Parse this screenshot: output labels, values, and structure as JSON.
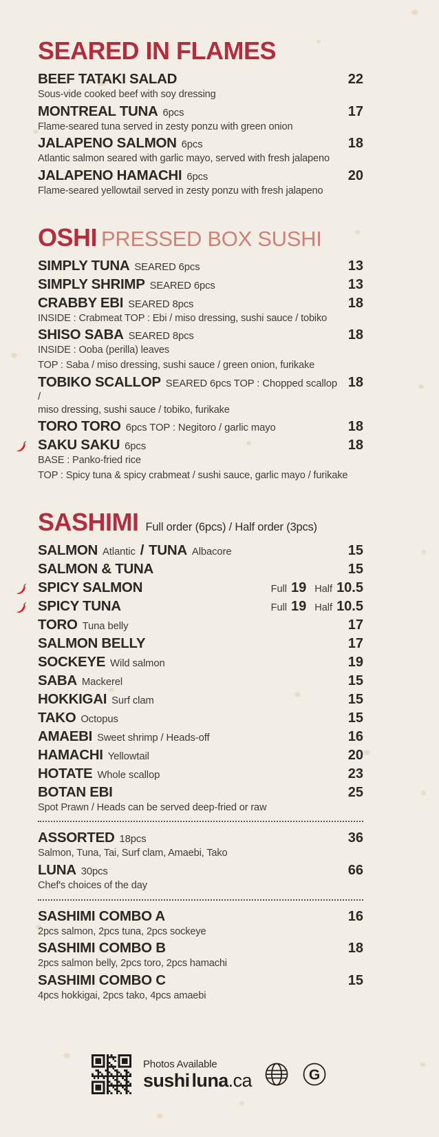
{
  "theme": {
    "background": "#f2eee5",
    "accent": "#b02e3e",
    "accent_light": "#cb8278",
    "text": "#2a2926",
    "muted": "#3f3d38"
  },
  "sections": [
    {
      "title": "SEARED IN FLAMES",
      "items": [
        {
          "parts": [
            {
              "t": "BEEF TATAKI SALAD",
              "s": "name"
            }
          ],
          "desc": [
            "Sous-vide cooked beef with soy dressing"
          ],
          "price": "22"
        },
        {
          "parts": [
            {
              "t": "MONTREAL TUNA",
              "s": "name"
            },
            {
              "t": "6pcs",
              "s": "sub"
            }
          ],
          "desc": [
            "Flame-seared tuna served in zesty ponzu with green onion"
          ],
          "price": "17"
        },
        {
          "parts": [
            {
              "t": "JALAPENO SALMON",
              "s": "name"
            },
            {
              "t": "6pcs",
              "s": "sub"
            }
          ],
          "desc": [
            "Atlantic salmon seared with garlic mayo, served with fresh jalapeno"
          ],
          "price": "18"
        },
        {
          "parts": [
            {
              "t": "JALAPENO HAMACHI",
              "s": "name"
            },
            {
              "t": "6pcs",
              "s": "sub"
            }
          ],
          "desc": [
            "Flame-seared yellowtail served in zesty ponzu with fresh jalapeno"
          ],
          "price": "20"
        }
      ]
    },
    {
      "title": "OSHI",
      "title_suffix": "PRESSED BOX SUSHI",
      "items": [
        {
          "parts": [
            {
              "t": "SIMPLY TUNA",
              "s": "name"
            },
            {
              "t": "SEARED 6pcs",
              "s": "sub"
            }
          ],
          "price": "13"
        },
        {
          "parts": [
            {
              "t": "SIMPLY SHRIMP",
              "s": "name"
            },
            {
              "t": "SEARED 6pcs",
              "s": "sub"
            }
          ],
          "price": "13"
        },
        {
          "parts": [
            {
              "t": "CRABBY EBI",
              "s": "name"
            },
            {
              "t": "SEARED 8pcs",
              "s": "sub"
            }
          ],
          "desc": [
            "INSIDE : Crabmeat TOP : Ebi / miso dressing, sushi sauce / tobiko"
          ],
          "price": "18"
        },
        {
          "parts": [
            {
              "t": "SHISO SABA",
              "s": "name"
            },
            {
              "t": "SEARED 8pcs",
              "s": "sub"
            }
          ],
          "desc": [
            "INSIDE : Ooba (perilla) leaves",
            "TOP : Saba / miso dressing, sushi sauce / green onion, furikake"
          ],
          "price": "18"
        },
        {
          "parts": [
            {
              "t": "TOBIKO SCALLOP",
              "s": "name"
            },
            {
              "t": "SEARED 6pcs  TOP : Chopped scallop /",
              "s": "sub"
            }
          ],
          "desc": [
            "miso dressing, sushi sauce / tobiko, furikake"
          ],
          "price": "18"
        },
        {
          "parts": [
            {
              "t": "TORO TORO",
              "s": "name"
            },
            {
              "t": "6pcs  TOP : Negitoro / garlic mayo",
              "s": "sub"
            }
          ],
          "price": "18"
        },
        {
          "spicy": true,
          "parts": [
            {
              "t": "SAKU SAKU",
              "s": "name"
            },
            {
              "t": "6pcs",
              "s": "sub"
            }
          ],
          "desc": [
            "BASE : Panko-fried rice",
            "TOP : Spicy tuna & spicy crabmeat / sushi sauce, garlic mayo / furikake"
          ],
          "price": "18"
        }
      ]
    },
    {
      "title": "SASHIMI",
      "title_note": "Full order (6pcs) / Half order (3pcs)",
      "items": [
        {
          "parts": [
            {
              "t": "SALMON",
              "s": "name"
            },
            {
              "t": "Atlantic",
              "s": "sub"
            },
            {
              "t": "/",
              "s": "name"
            },
            {
              "t": "TUNA",
              "s": "name"
            },
            {
              "t": "Albacore",
              "s": "sub"
            }
          ],
          "price": "15"
        },
        {
          "parts": [
            {
              "t": "SALMON & TUNA",
              "s": "name"
            }
          ],
          "price": "15"
        },
        {
          "spicy": true,
          "parts": [
            {
              "t": "SPICY SALMON",
              "s": "name"
            }
          ],
          "fh": {
            "full_label": "Full",
            "full": "19",
            "half_label": "Half",
            "half": "10.5"
          }
        },
        {
          "spicy": true,
          "parts": [
            {
              "t": "SPICY TUNA",
              "s": "name"
            }
          ],
          "fh": {
            "full_label": "Full",
            "full": "19",
            "half_label": "Half",
            "half": "10.5"
          }
        },
        {
          "parts": [
            {
              "t": "TORO",
              "s": "name"
            },
            {
              "t": "Tuna belly",
              "s": "sub"
            }
          ],
          "price": "17"
        },
        {
          "parts": [
            {
              "t": "SALMON BELLY",
              "s": "name"
            }
          ],
          "price": "17"
        },
        {
          "parts": [
            {
              "t": "SOCKEYE",
              "s": "name"
            },
            {
              "t": "Wild salmon",
              "s": "sub"
            }
          ],
          "price": "19"
        },
        {
          "parts": [
            {
              "t": "SABA",
              "s": "name"
            },
            {
              "t": "Mackerel",
              "s": "sub"
            }
          ],
          "price": "15"
        },
        {
          "parts": [
            {
              "t": "HOKKIGAI",
              "s": "name"
            },
            {
              "t": "Surf clam",
              "s": "sub"
            }
          ],
          "price": "15"
        },
        {
          "parts": [
            {
              "t": "TAKO",
              "s": "name"
            },
            {
              "t": "Octopus",
              "s": "sub"
            }
          ],
          "price": "15"
        },
        {
          "parts": [
            {
              "t": "AMAEBI",
              "s": "name"
            },
            {
              "t": "Sweet shrimp / Heads-off",
              "s": "sub"
            }
          ],
          "price": "16"
        },
        {
          "parts": [
            {
              "t": "HAMACHI",
              "s": "name"
            },
            {
              "t": "Yellowtail",
              "s": "sub"
            }
          ],
          "price": "20"
        },
        {
          "parts": [
            {
              "t": "HOTATE",
              "s": "name"
            },
            {
              "t": "Whole scallop",
              "s": "sub"
            }
          ],
          "price": "23"
        },
        {
          "parts": [
            {
              "t": "BOTAN EBI",
              "s": "name"
            }
          ],
          "desc": [
            "Spot Prawn / Heads can be served deep-fried or raw"
          ],
          "price": "25"
        },
        {
          "divider": true
        },
        {
          "parts": [
            {
              "t": "ASSORTED",
              "s": "name"
            },
            {
              "t": "18pcs",
              "s": "sub"
            }
          ],
          "desc": [
            "Salmon, Tuna, Tai, Surf clam, Amaebi, Tako"
          ],
          "price": "36"
        },
        {
          "parts": [
            {
              "t": "LUNA",
              "s": "name"
            },
            {
              "t": "30pcs",
              "s": "sub"
            }
          ],
          "desc": [
            "Chef's choices of the day"
          ],
          "price": "66"
        },
        {
          "divider": true
        },
        {
          "parts": [
            {
              "t": "SASHIMI COMBO A",
              "s": "name"
            }
          ],
          "desc": [
            "2pcs salmon, 2pcs tuna, 2pcs sockeye"
          ],
          "price": "16"
        },
        {
          "parts": [
            {
              "t": "SASHIMI COMBO B",
              "s": "name"
            }
          ],
          "desc": [
            "2pcs salmon belly, 2pcs toro, 2pcs hamachi"
          ],
          "price": "18"
        },
        {
          "parts": [
            {
              "t": "SASHIMI COMBO C",
              "s": "name"
            }
          ],
          "desc": [
            "4pcs hokkigai, 2pcs tako, 4pcs amaebi"
          ],
          "price": "15"
        }
      ]
    }
  ],
  "footer": {
    "photos_text": "Photos Available",
    "site": {
      "part1": "sushi",
      "part2": "luna",
      "part3": ".ca"
    },
    "google_letter": "G",
    "icons": [
      "qr-code",
      "globe",
      "google-g"
    ]
  }
}
